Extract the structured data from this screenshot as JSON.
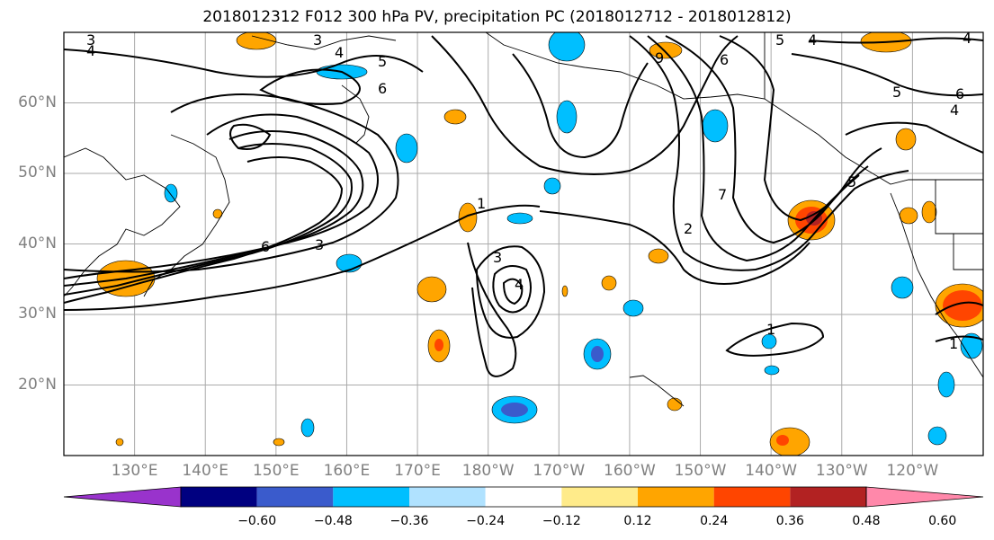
{
  "title": "2018012312 F012 300 hPa PV, precipitation PC (2018012712 - 2018012812)",
  "map": {
    "lat_labels": [
      "60°N",
      "50°N",
      "40°N",
      "30°N",
      "20°N"
    ],
    "lon_labels": [
      "130°E",
      "140°E",
      "150°E",
      "160°E",
      "170°E",
      "180°W",
      "170°W",
      "160°W",
      "150°W",
      "140°W",
      "130°W",
      "120°W"
    ],
    "lat_range": [
      10,
      70
    ],
    "lon_range": [
      120,
      250
    ],
    "gridlines": true,
    "contour_color": "#000000",
    "contour_labels": [
      "3",
      "4",
      "5",
      "6",
      "1",
      "2",
      "3",
      "4",
      "5",
      "2",
      "1",
      "4",
      "5",
      "6",
      "7",
      "6",
      "5",
      "4",
      "3",
      "2",
      "1",
      "5",
      "4",
      "2",
      "1",
      "7",
      "4",
      "5",
      "6",
      "4",
      "1",
      "3",
      "6",
      "9",
      "6"
    ]
  },
  "colorbar": {
    "tick_labels": [
      "−0.60",
      "−0.48",
      "−0.36",
      "−0.24",
      "−0.12",
      "0.12",
      "0.24",
      "0.36",
      "0.48",
      "0.60"
    ],
    "colors": [
      "#9933cc",
      "#000080",
      "#3a5bcc",
      "#00bfff",
      "#b0e2ff",
      "#ffffff",
      "#ffeb8a",
      "#ffa500",
      "#ff4500",
      "#b22222",
      "#ff88aa"
    ]
  }
}
